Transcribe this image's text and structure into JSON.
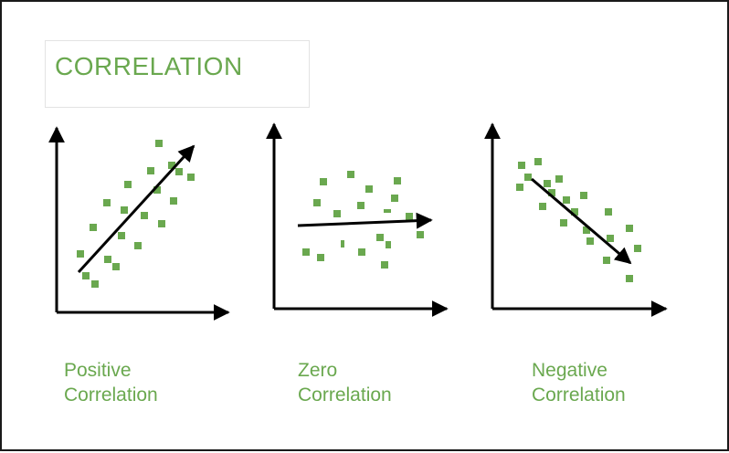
{
  "title": "CORRELATION",
  "colors": {
    "accent": "#6aa84f",
    "axis": "#000000",
    "frame": "#1a1a1a"
  },
  "panels": [
    {
      "kind": "positive",
      "caption_line1": "Positive",
      "caption_line2": "Correlation"
    },
    {
      "kind": "zero",
      "caption_line1": "Zero",
      "caption_line2": "Correlation"
    },
    {
      "kind": "negative",
      "caption_line1": "Negative",
      "caption_line2": "Correlation"
    }
  ]
}
